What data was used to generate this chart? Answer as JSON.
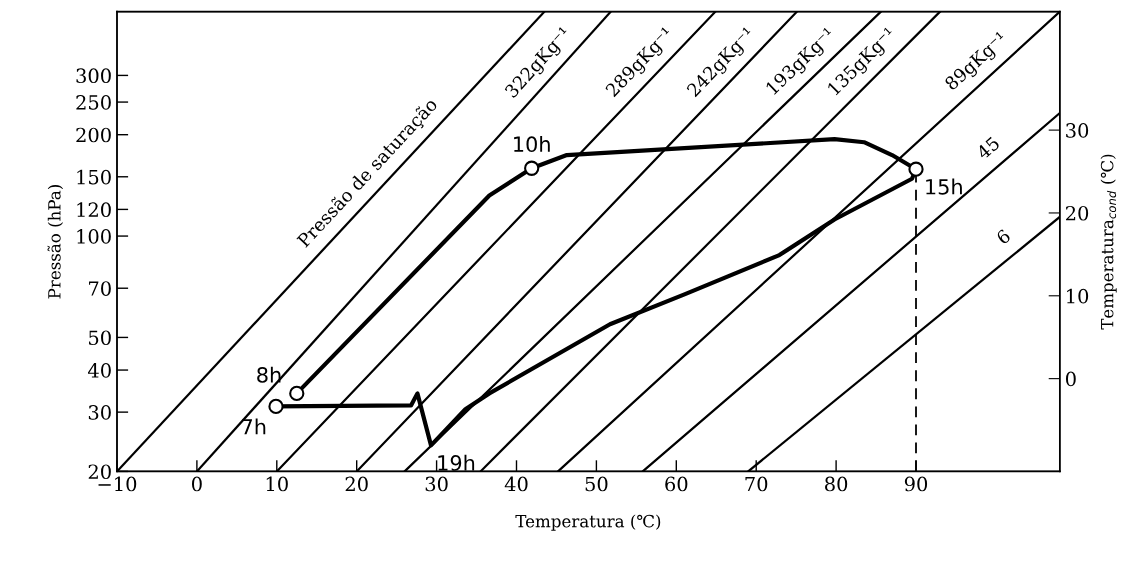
{
  "chart_data": {
    "type": "line",
    "xlabel": "Temperatura (℃)",
    "ylabel": "Pressão (hPa)",
    "y2label": "Temperatura$_{cond}$ (℃)",
    "xlim": [
      -10,
      108
    ],
    "xticks": [
      {
        "value": -10,
        "label": "−10"
      },
      0,
      10,
      20,
      30,
      40,
      50,
      60,
      70,
      80,
      90
    ],
    "ylim": [
      20,
      464
    ],
    "yticks": [
      20,
      30,
      40,
      50,
      70,
      100,
      120,
      150,
      200,
      250,
      300
    ],
    "log": "y",
    "y2lim": [
      -11.2,
      44.3
    ],
    "y2ticks": [
      0,
      10,
      20,
      30
    ],
    "grid": false,
    "legend": false,
    "annotations": [
      {
        "text": "7h",
        "x": 9.9,
        "y": 31.2
      },
      {
        "text": "8h",
        "x": 12.5,
        "y": 34.1
      },
      {
        "text": "10h",
        "x": 41.9,
        "y": 159
      },
      {
        "text": "15h",
        "x": 90,
        "y": 158
      },
      {
        "text": "19h",
        "x": 29.3,
        "y": 23.9
      }
    ],
    "series": [
      {
        "name": "Pressão de saturação",
        "color": "#000000",
        "x": [
          -10,
          43.5
        ],
        "values": [
          20,
          464
        ]
      },
      {
        "name": "322gKg⁻¹",
        "color": "#000000",
        "x": [
          0,
          51.8
        ],
        "values": [
          20,
          464
        ]
      },
      {
        "name": "289gKg⁻¹",
        "color": "#000000",
        "x": [
          10,
          64.9
        ],
        "values": [
          20,
          464
        ]
      },
      {
        "name": "242gKg⁻¹",
        "color": "#000000",
        "x": [
          20,
          75.1
        ],
        "values": [
          20,
          464
        ]
      },
      {
        "name": "193gKg⁻¹",
        "color": "#000000",
        "x": [
          26,
          85.6
        ],
        "values": [
          20,
          464
        ]
      },
      {
        "name": "135gKg⁻¹",
        "color": "#000000",
        "x": [
          35.5,
          93
        ],
        "values": [
          20,
          464
        ]
      },
      {
        "name": "89gKg⁻¹",
        "color": "#000000",
        "x": [
          45.2,
          108
        ],
        "values": [
          20,
          464
        ]
      },
      {
        "name": "45",
        "color": "#000000",
        "x": [
          55.8,
          108
        ],
        "values": [
          20,
          232
        ]
      },
      {
        "name": "6",
        "color": "#000000",
        "x": [
          69,
          108
        ],
        "values": [
          20,
          114
        ]
      },
      {
        "color": "#000000",
        "line_style": "dashed",
        "x": [
          90,
          90
        ],
        "values": [
          20,
          158
        ]
      },
      {
        "color": "#000000",
        "x": [
          12.5,
          36.6,
          41.9,
          46.3,
          79.8,
          83.5,
          87.0,
          90,
          89.5,
          79.8,
          72.9,
          61.1,
          51.7,
          36.6,
          33.6,
          29.3,
          27.6,
          26.8,
          9.9
        ],
        "values": [
          34.1,
          132,
          159,
          174,
          194,
          190,
          174,
          158,
          148,
          112,
          87.8,
          67.2,
          54.7,
          34.1,
          30.6,
          23.9,
          34.1,
          31.4,
          31.2
        ]
      },
      {
        "type": "scatter",
        "color": "#000000",
        "marker": "circle",
        "x": [
          9.9,
          12.5,
          41.9,
          90
        ],
        "values": [
          31.2,
          34.1,
          159,
          158
        ]
      }
    ]
  }
}
